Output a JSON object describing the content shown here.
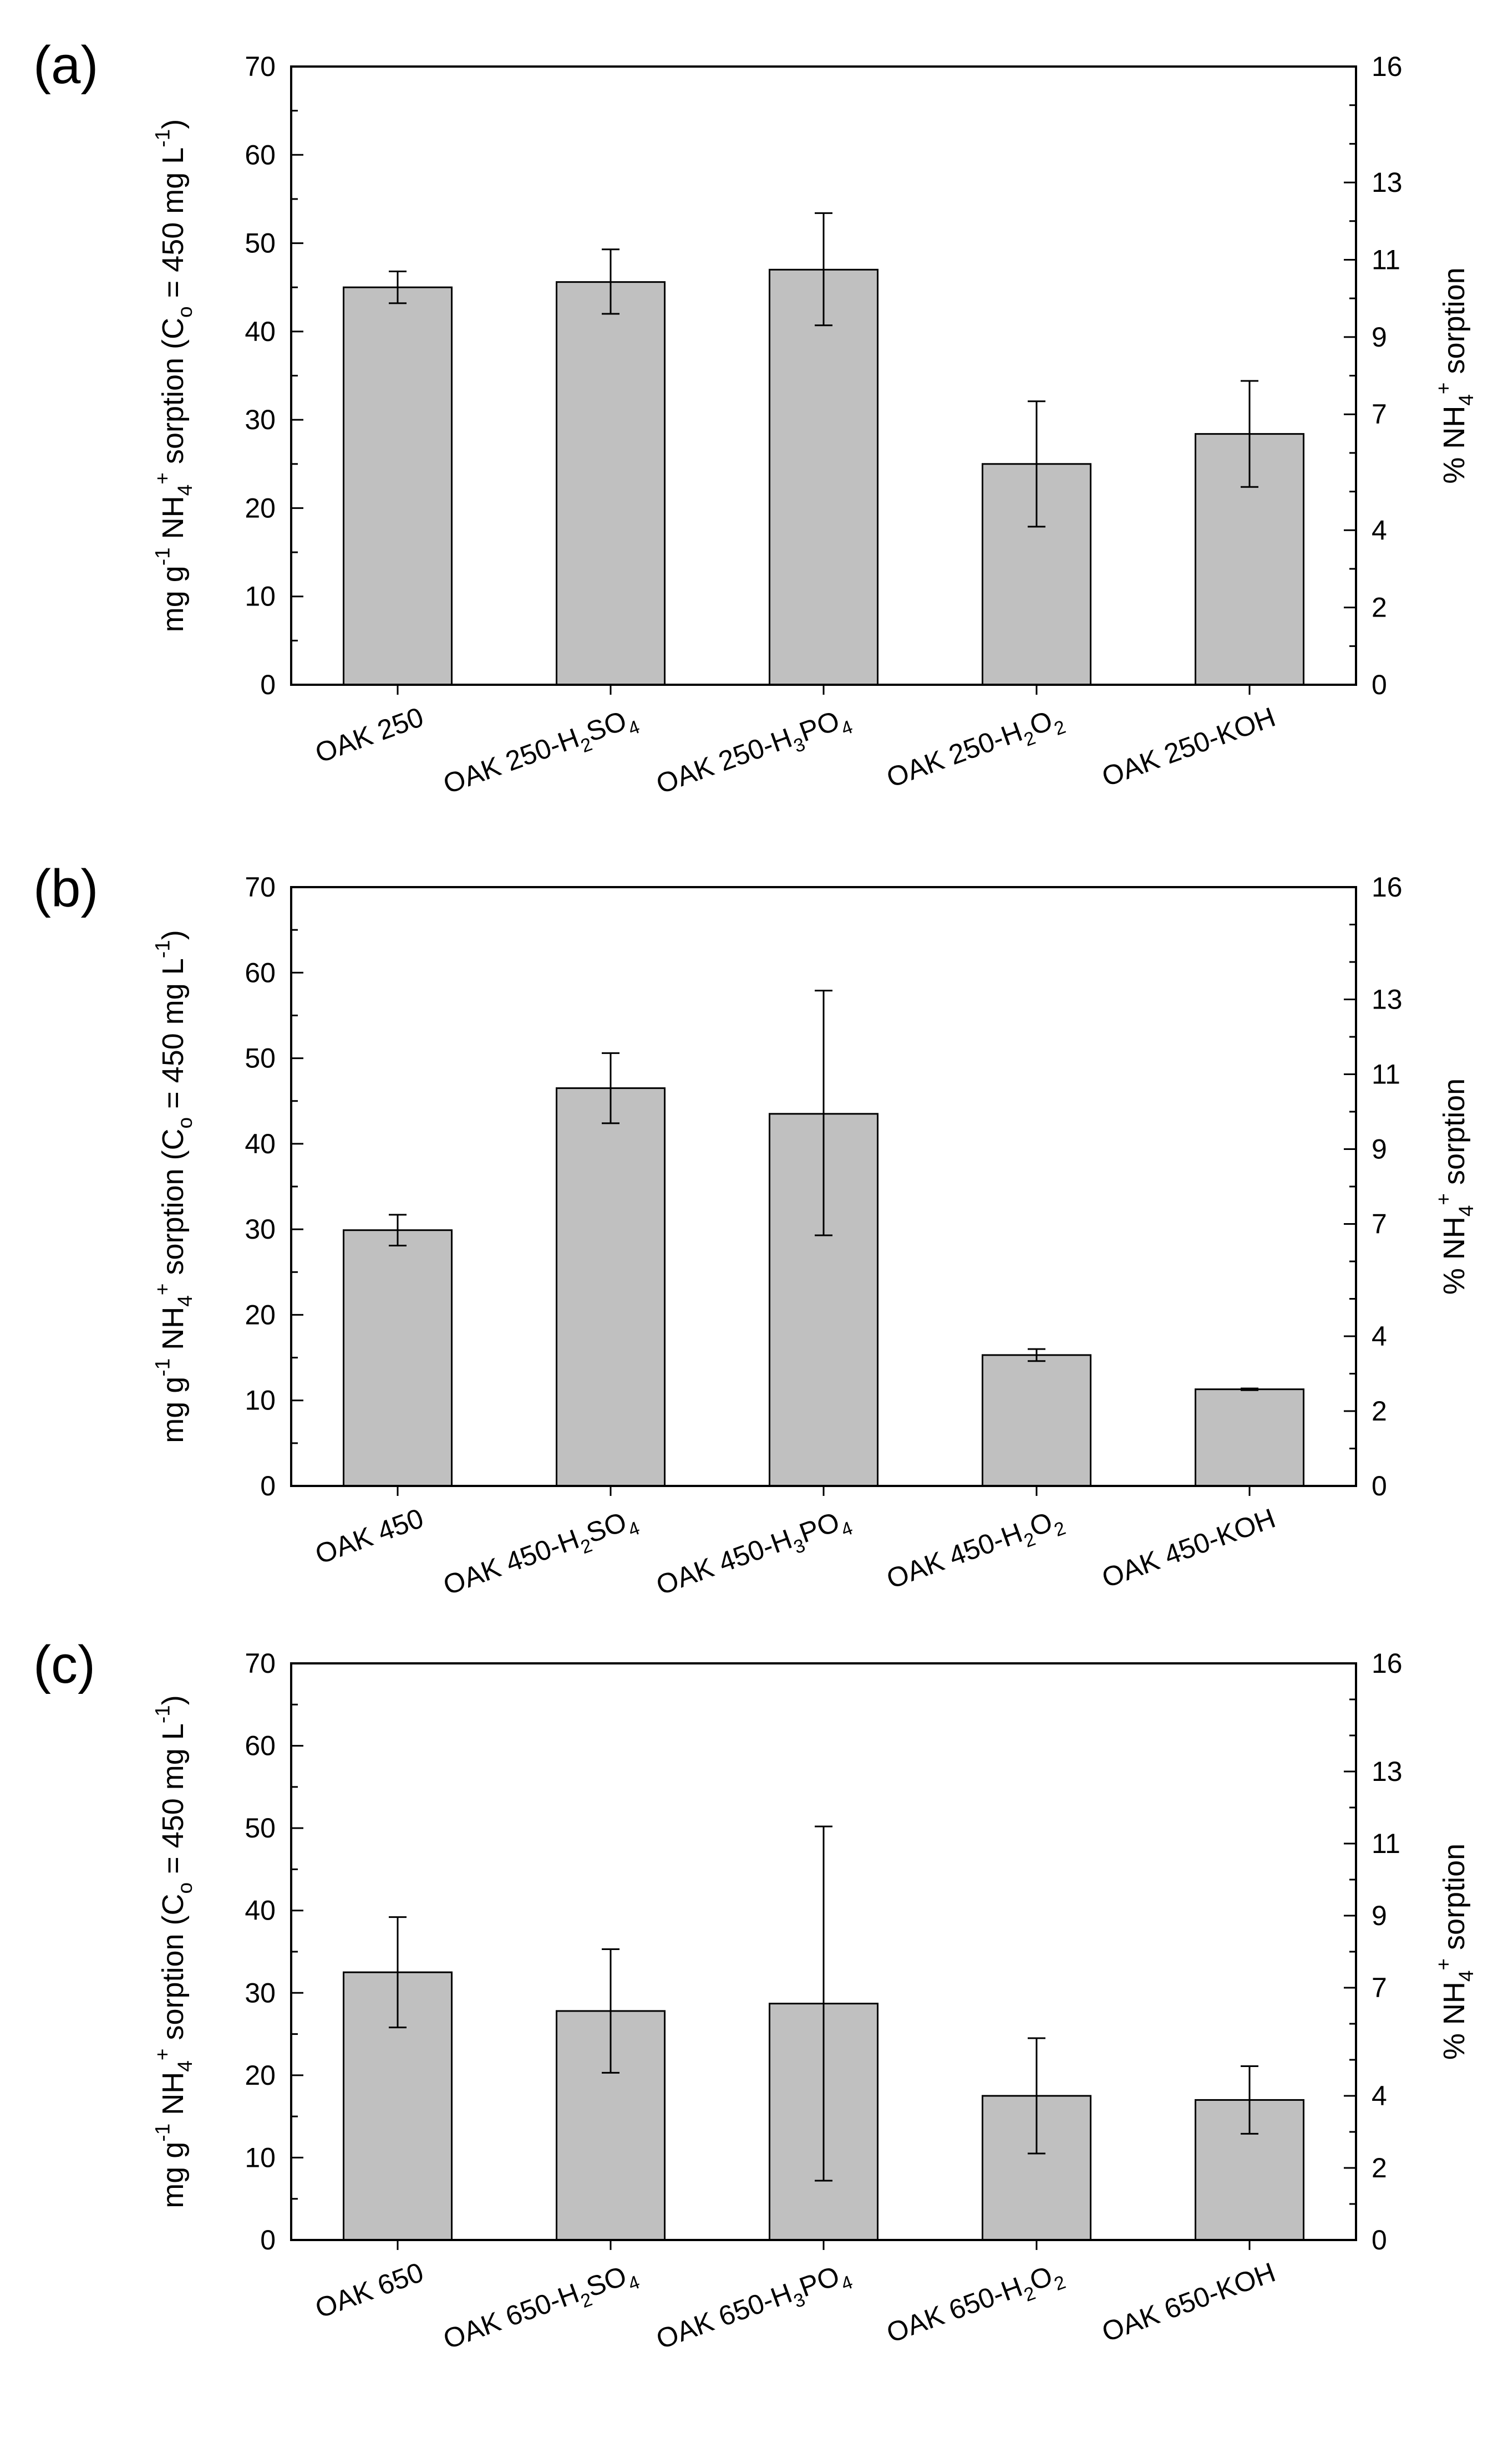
{
  "figure": {
    "chart_data": [
      {
        "type": "bar",
        "panel_label": "(a)",
        "categories": [
          {
            "base": "OAK 250",
            "parts": []
          },
          {
            "base": "OAK 250-",
            "parts": [
              [
                "H",
                ""
              ],
              [
                "2",
                "sub"
              ],
              [
                "SO",
                ""
              ],
              [
                "4",
                "sub"
              ]
            ]
          },
          {
            "base": "OAK 250-",
            "parts": [
              [
                "H",
                ""
              ],
              [
                "3",
                "sub"
              ],
              [
                "PO",
                ""
              ],
              [
                "4",
                "sub"
              ]
            ]
          },
          {
            "base": "OAK 250-",
            "parts": [
              [
                "H",
                ""
              ],
              [
                "2",
                "sub"
              ],
              [
                "O",
                ""
              ],
              [
                "2",
                "sub"
              ]
            ]
          },
          {
            "base": "OAK 250-KOH",
            "parts": []
          }
        ],
        "values": [
          45.0,
          45.6,
          47.0,
          25.0,
          28.4
        ],
        "error_low": [
          43.2,
          42.0,
          40.7,
          17.9,
          22.4
        ],
        "error_high": [
          46.8,
          49.3,
          53.4,
          32.1,
          34.4
        ],
        "ylim": [
          0,
          70
        ],
        "yticks": [
          0,
          10,
          20,
          30,
          40,
          50,
          60,
          70
        ],
        "y2lim": [
          0,
          16
        ],
        "y2ticks": [
          0,
          2,
          4,
          7,
          9,
          11,
          13,
          16
        ],
        "y2tick_labels": [
          "0",
          "2",
          "4",
          "7",
          "9",
          "11",
          "13",
          "16"
        ],
        "bar_color": "#c0c0c0"
      },
      {
        "type": "bar",
        "panel_label": "(b)",
        "categories": [
          {
            "base": "OAK 450",
            "parts": []
          },
          {
            "base": "OAK 450-",
            "parts": [
              [
                "H",
                ""
              ],
              [
                "2",
                "sub"
              ],
              [
                "SO",
                ""
              ],
              [
                "4",
                "sub"
              ]
            ]
          },
          {
            "base": "OAK 450-",
            "parts": [
              [
                "H",
                ""
              ],
              [
                "3",
                "sub"
              ],
              [
                "PO",
                ""
              ],
              [
                "4",
                "sub"
              ]
            ]
          },
          {
            "base": "OAK 450-",
            "parts": [
              [
                "H",
                ""
              ],
              [
                "2",
                "sub"
              ],
              [
                "O",
                ""
              ],
              [
                "2",
                "sub"
              ]
            ]
          },
          {
            "base": "OAK 450-KOH",
            "parts": []
          }
        ],
        "values": [
          29.9,
          46.5,
          43.5,
          15.3,
          11.3
        ],
        "error_low": [
          28.1,
          42.4,
          29.3,
          14.6,
          11.2
        ],
        "error_high": [
          31.7,
          50.6,
          57.9,
          16.0,
          11.4
        ],
        "ylim": [
          0,
          70
        ],
        "yticks": [
          0,
          10,
          20,
          30,
          40,
          50,
          60,
          70
        ],
        "y2lim": [
          0,
          16
        ],
        "y2ticks": [
          0,
          2,
          4,
          7,
          9,
          11,
          13,
          16
        ],
        "y2tick_labels": [
          "0",
          "2",
          "4",
          "7",
          "9",
          "11",
          "13",
          "16"
        ],
        "bar_color": "#c0c0c0"
      },
      {
        "type": "bar",
        "panel_label": "(c)",
        "categories": [
          {
            "base": "OAK 650",
            "parts": []
          },
          {
            "base": "OAK 650-",
            "parts": [
              [
                "H",
                ""
              ],
              [
                "2",
                "sub"
              ],
              [
                "SO",
                ""
              ],
              [
                "4",
                "sub"
              ]
            ]
          },
          {
            "base": "OAK 650-",
            "parts": [
              [
                "H",
                ""
              ],
              [
                "3",
                "sub"
              ],
              [
                "PO",
                ""
              ],
              [
                "4",
                "sub"
              ]
            ]
          },
          {
            "base": "OAK 650-",
            "parts": [
              [
                "H",
                ""
              ],
              [
                "2",
                "sub"
              ],
              [
                "O",
                ""
              ],
              [
                "2",
                "sub"
              ]
            ]
          },
          {
            "base": "OAK 650-KOH",
            "parts": []
          }
        ],
        "values": [
          32.5,
          27.8,
          28.7,
          17.5,
          17.0
        ],
        "error_low": [
          25.8,
          20.3,
          7.2,
          10.5,
          12.9
        ],
        "error_high": [
          39.2,
          35.3,
          50.2,
          24.5,
          21.1
        ],
        "ylim": [
          0,
          70
        ],
        "yticks": [
          0,
          10,
          20,
          30,
          40,
          50,
          60,
          70
        ],
        "y2lim": [
          0,
          16
        ],
        "y2ticks": [
          0,
          2,
          4,
          7,
          9,
          11,
          13,
          16
        ],
        "y2tick_labels": [
          "0",
          "2",
          "4",
          "7",
          "9",
          "11",
          "13",
          "16"
        ],
        "bar_color": "#c0c0c0"
      }
    ],
    "ylabel": {
      "parts": [
        [
          "mg g",
          ""
        ],
        [
          "-1",
          "sup"
        ],
        [
          " NH",
          ""
        ],
        [
          "4",
          "sub"
        ],
        [
          "+",
          "sup"
        ],
        [
          " sorption (C",
          ""
        ],
        [
          "o",
          "sub"
        ],
        [
          " = 450 mg L",
          ""
        ],
        [
          "-1",
          "sup"
        ],
        [
          ")",
          ""
        ]
      ]
    },
    "y2label": {
      "parts": [
        [
          "% NH",
          ""
        ],
        [
          "4",
          "sub"
        ],
        [
          "+",
          "sup"
        ],
        [
          " sorption",
          ""
        ]
      ]
    }
  }
}
